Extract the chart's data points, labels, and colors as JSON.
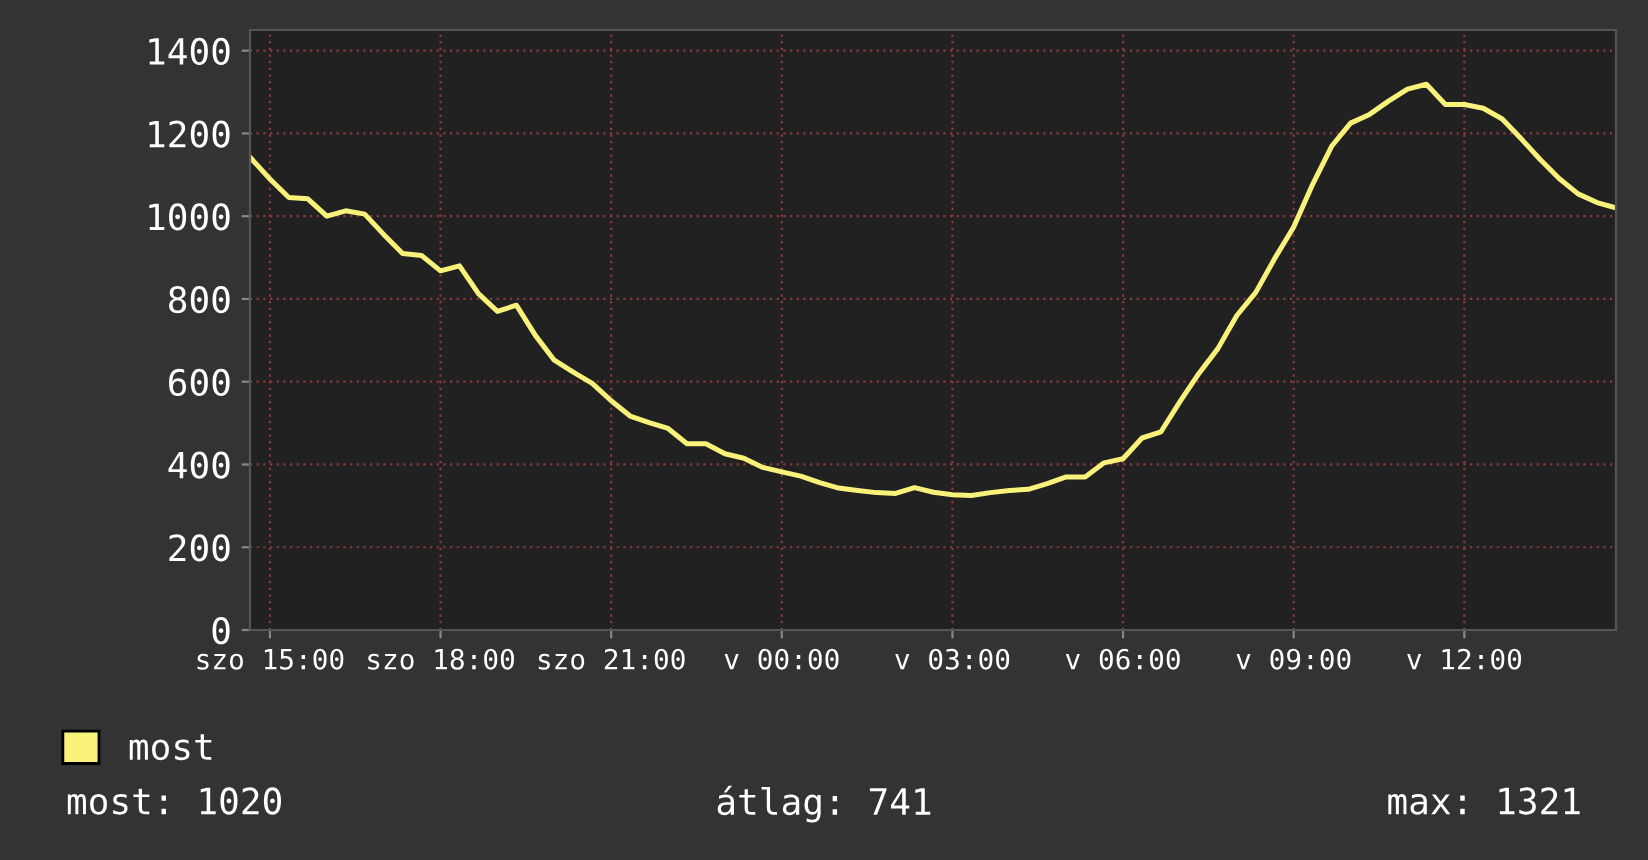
{
  "chart_data": {
    "type": "line",
    "categories": [
      null,
      "szo 15:00",
      null,
      null,
      null,
      null,
      null,
      null,
      null,
      null,
      "szo 18:00",
      null,
      null,
      null,
      null,
      null,
      null,
      null,
      null,
      "szo 21:00",
      null,
      null,
      null,
      null,
      null,
      null,
      null,
      null,
      "v 00:00",
      null,
      null,
      null,
      null,
      null,
      null,
      null,
      null,
      "v 03:00",
      null,
      null,
      null,
      null,
      null,
      null,
      null,
      null,
      "v 06:00",
      null,
      null,
      null,
      null,
      null,
      null,
      null,
      null,
      "v 09:00",
      null,
      null,
      null,
      null,
      null,
      null,
      null,
      null,
      "v 12:00",
      null,
      null,
      null,
      null,
      null,
      null,
      null,
      null
    ],
    "series": [
      {
        "name": "most",
        "color": "#f8f27a",
        "values": [
          1140,
          1090,
          1045,
          1042,
          1000,
          1013,
          1005,
          956,
          910,
          905,
          868,
          880,
          813,
          770,
          785,
          712,
          652,
          623,
          596,
          554,
          517,
          501,
          487,
          450,
          450,
          426,
          415,
          393,
          382,
          372,
          356,
          343,
          337,
          332,
          330,
          344,
          333,
          327,
          325,
          332,
          337,
          340,
          354,
          370,
          370,
          404,
          414,
          464,
          479,
          552,
          620,
          680,
          760,
          816,
          898,
          974,
          1077,
          1169,
          1225,
          1246,
          1278,
          1307,
          1319,
          1270,
          1270,
          1261,
          1235,
          1187,
          1137,
          1091,
          1054,
          1033,
          1020
        ]
      }
    ],
    "ylim": [
      0,
      1450
    ],
    "yticks": [
      0,
      200,
      400,
      600,
      800,
      1000,
      1200,
      1400
    ],
    "grid": true,
    "legend": "bottom left",
    "line_style": "solid",
    "marker": "none",
    "annotations": [
      "most: 1020",
      "átlag: 741",
      "max: 1321"
    ]
  }
}
